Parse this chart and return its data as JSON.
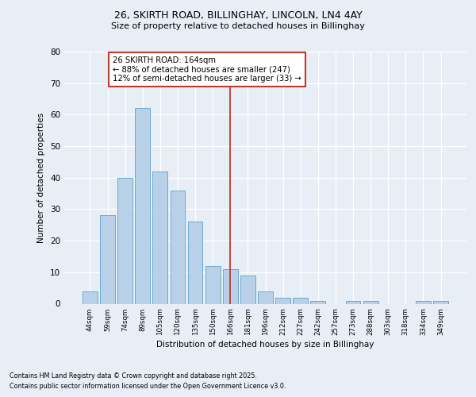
{
  "title_line1": "26, SKIRTH ROAD, BILLINGHAY, LINCOLN, LN4 4AY",
  "title_line2": "Size of property relative to detached houses in Billinghay",
  "xlabel": "Distribution of detached houses by size in Billinghay",
  "ylabel": "Number of detached properties",
  "categories": [
    "44sqm",
    "59sqm",
    "74sqm",
    "89sqm",
    "105sqm",
    "120sqm",
    "135sqm",
    "150sqm",
    "166sqm",
    "181sqm",
    "196sqm",
    "212sqm",
    "227sqm",
    "242sqm",
    "257sqm",
    "273sqm",
    "288sqm",
    "303sqm",
    "318sqm",
    "334sqm",
    "349sqm"
  ],
  "values": [
    4,
    28,
    40,
    62,
    42,
    36,
    26,
    12,
    11,
    9,
    4,
    2,
    2,
    1,
    0,
    1,
    1,
    0,
    0,
    1,
    1
  ],
  "bar_color": "#b8d0e8",
  "bar_edge_color": "#6aaad4",
  "vline_x": 8,
  "vline_color": "#c0392b",
  "annotation_text": "26 SKIRTH ROAD: 164sqm\n← 88% of detached houses are smaller (247)\n12% of semi-detached houses are larger (33) →",
  "annotation_box_color": "#c0392b",
  "ylim": [
    0,
    80
  ],
  "yticks": [
    0,
    10,
    20,
    30,
    40,
    50,
    60,
    70,
    80
  ],
  "background_color": "#e8eef5",
  "plot_bg_color": "#e8eef5",
  "grid_color": "#ffffff",
  "footer_line1": "Contains HM Land Registry data © Crown copyright and database right 2025.",
  "footer_line2": "Contains public sector information licensed under the Open Government Licence v3.0."
}
